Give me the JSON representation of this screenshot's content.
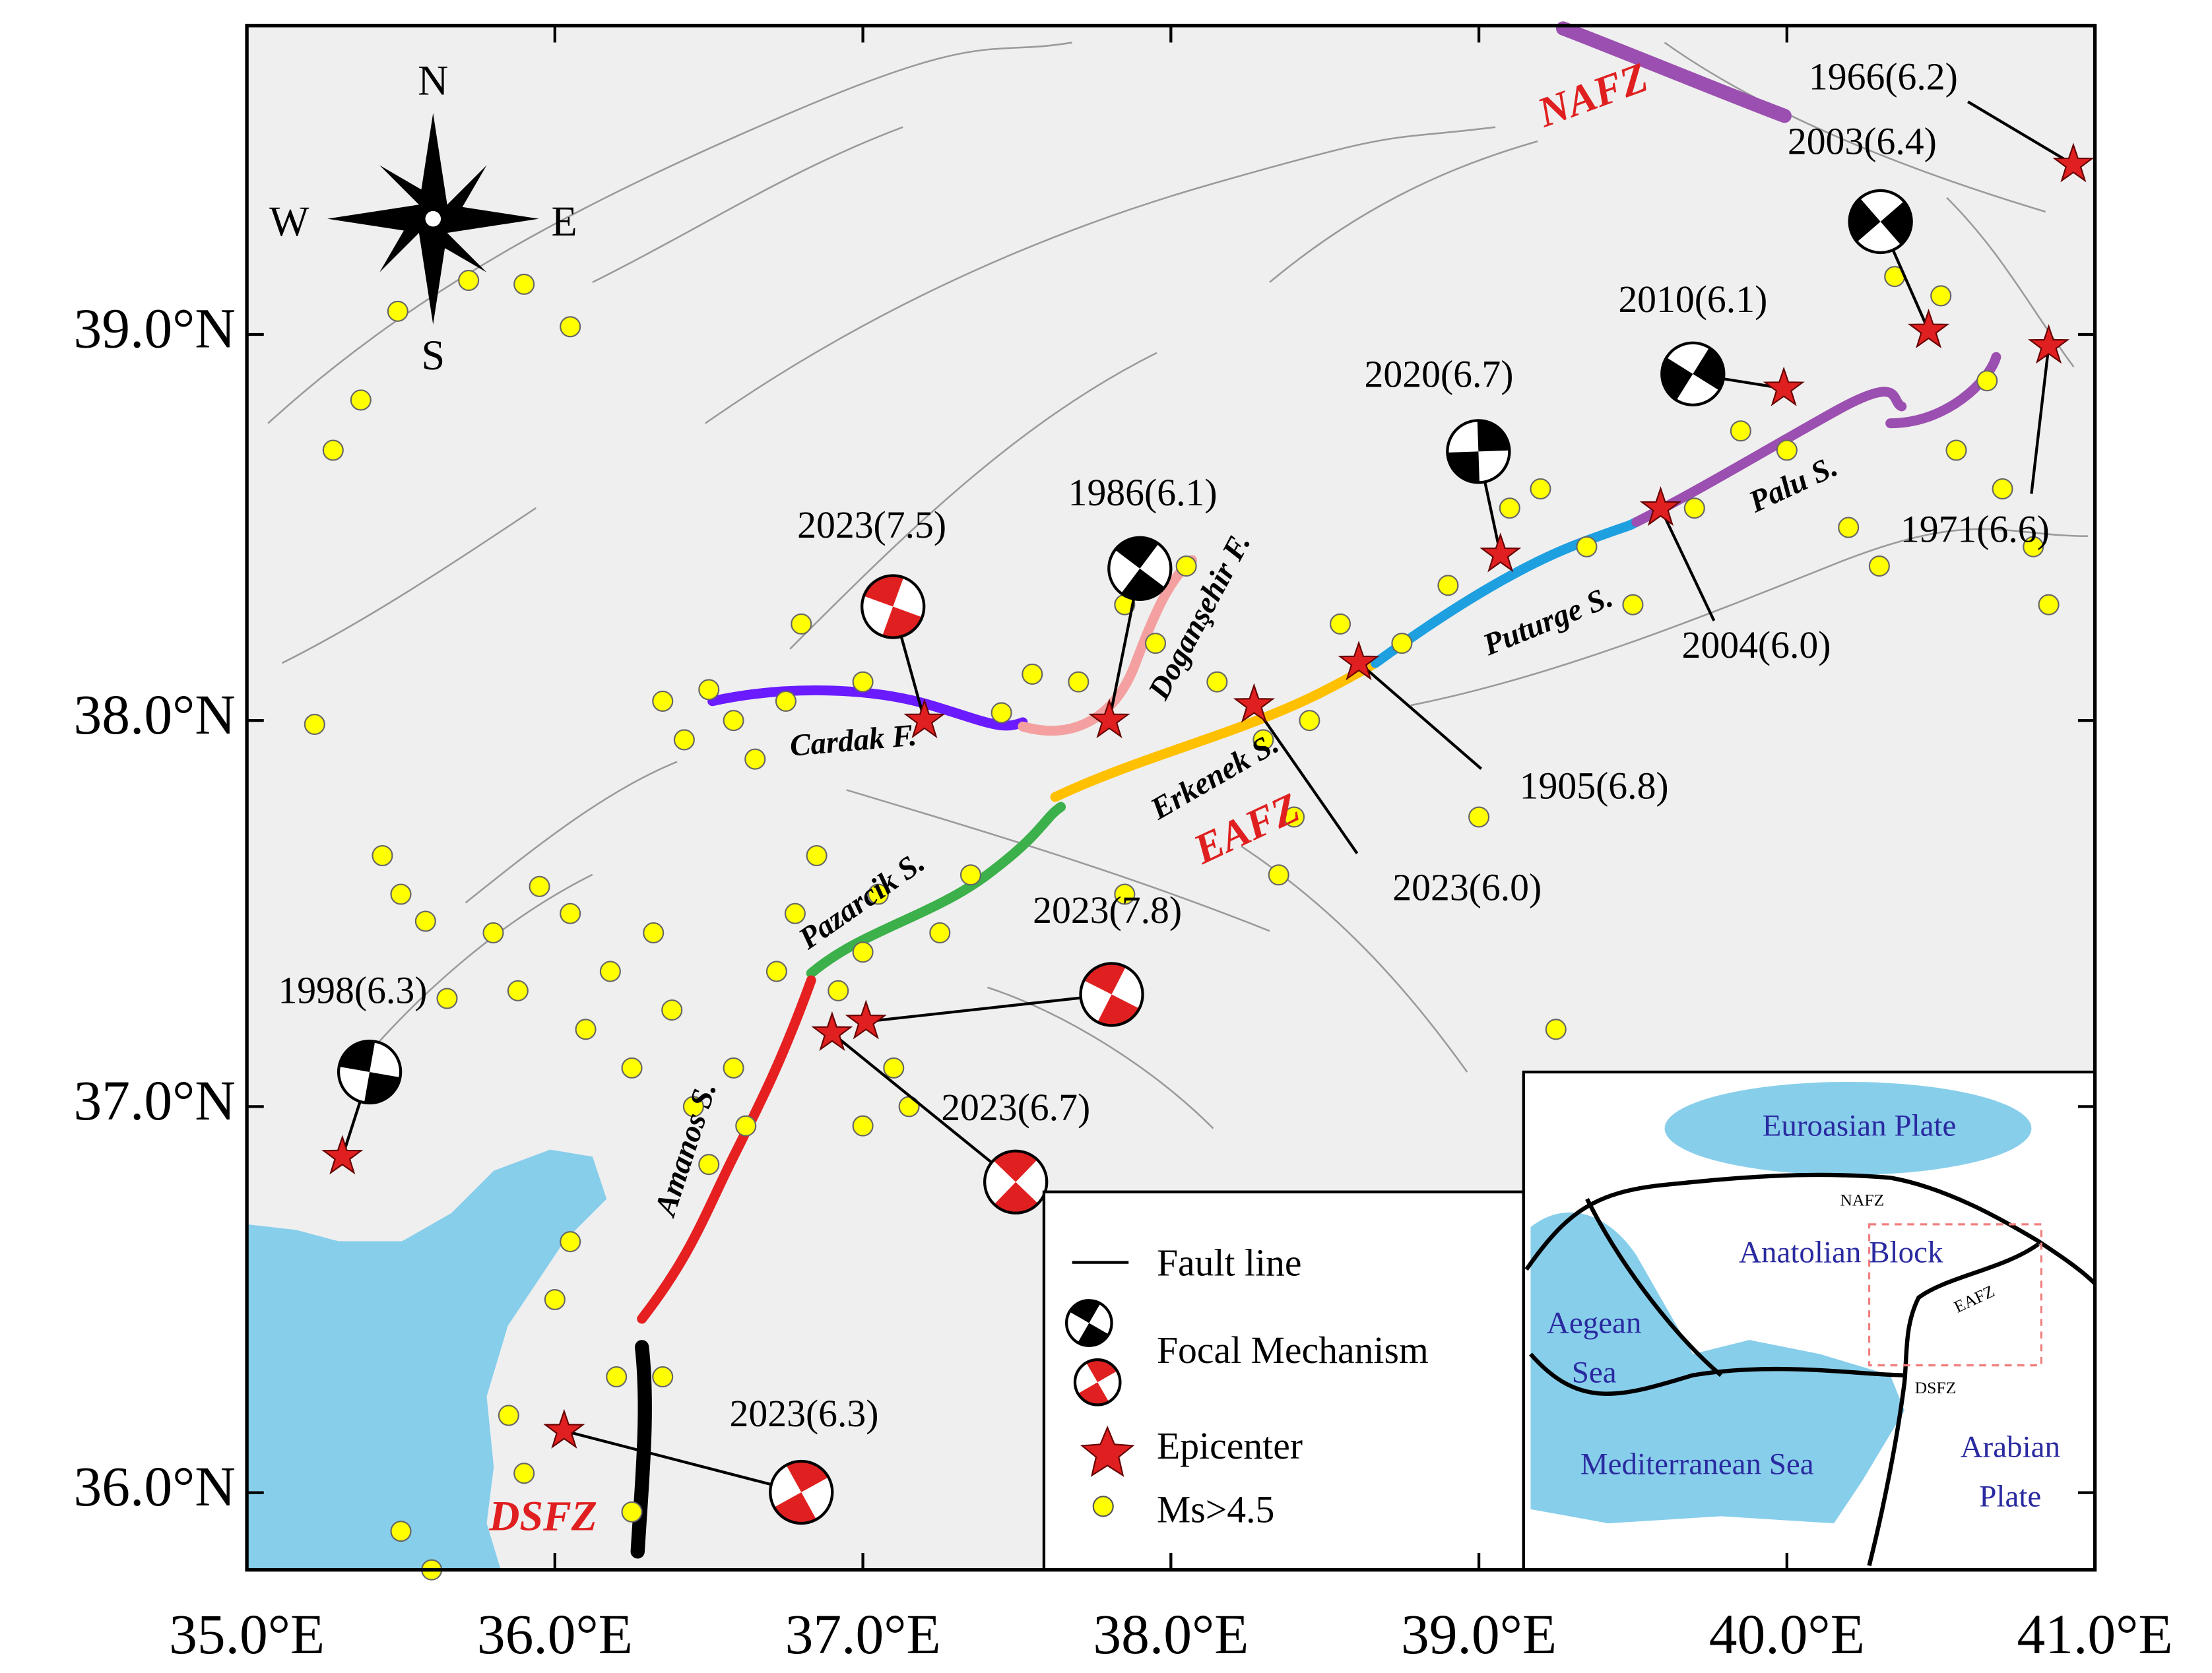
{
  "map": {
    "xlim": [
      35,
      41
    ],
    "ylim": [
      35.8,
      39.8
    ],
    "xticks": [
      {
        "value": 35,
        "label": "35.0°E"
      },
      {
        "value": 36,
        "label": "36.0°E"
      },
      {
        "value": 37,
        "label": "37.0°E"
      },
      {
        "value": 38,
        "label": "38.0°E"
      },
      {
        "value": 39,
        "label": "39.0°E"
      },
      {
        "value": 40,
        "label": "40.0°E"
      },
      {
        "value": 41,
        "label": "41.0°E"
      }
    ],
    "yticks": [
      {
        "value": 36,
        "label": "36.0°N"
      },
      {
        "value": 37,
        "label": "37.0°N"
      },
      {
        "value": 38,
        "label": "38.0°N"
      },
      {
        "value": 39,
        "label": "39.0°N"
      }
    ]
  },
  "compass": {
    "n": "N",
    "e": "E",
    "s": "S",
    "w": "W"
  },
  "events": [
    {
      "label": "2023(7.5)",
      "lon": 37.2,
      "lat": 38.0,
      "ball_color": "#e02020"
    },
    {
      "label": "1986(6.1)",
      "lon": 37.8,
      "lat": 38.0,
      "ball_color": "#000000"
    },
    {
      "label": "2023(6.0)",
      "lon": 38.27,
      "lat": 38.04
    },
    {
      "label": "1905(6.8)",
      "lon": 38.61,
      "lat": 38.15
    },
    {
      "label": "2020(6.7)",
      "lon": 39.07,
      "lat": 38.43,
      "ball_color": "#000000"
    },
    {
      "label": "2004(6.0)",
      "lon": 39.59,
      "lat": 38.55
    },
    {
      "label": "2010(6.1)",
      "lon": 39.99,
      "lat": 38.86,
      "ball_color": "#000000"
    },
    {
      "label": "2003(6.4)",
      "lon": 40.46,
      "lat": 39.01,
      "ball_color": "#000000"
    },
    {
      "label": "1966(6.2)",
      "lon": 40.93,
      "lat": 39.44
    },
    {
      "label": "1971(6.6)",
      "lon": 40.85,
      "lat": 38.97
    },
    {
      "label": "1998(6.3)",
      "lon": 35.31,
      "lat": 36.87,
      "ball_color": "#000000"
    },
    {
      "label": "2023(7.8)",
      "lon": 37.01,
      "lat": 37.22,
      "ball_color": "#e02020"
    },
    {
      "label": "2023(6.7)",
      "lon": 36.9,
      "lat": 37.19,
      "ball_color": "#e02020"
    },
    {
      "label": "2023(6.3)",
      "lon": 36.03,
      "lat": 36.16,
      "ball_color": "#e02020"
    }
  ],
  "earthquakes": {
    "lon": [
      35.28,
      35.37,
      35.49,
      35.72,
      35.9,
      36.05,
      35.22,
      35.44,
      35.5,
      35.58,
      35.65,
      35.8,
      35.88,
      35.95,
      36.05,
      36.1,
      36.18,
      36.25,
      36.32,
      36.38,
      36.45,
      36.5,
      36.58,
      36.62,
      36.72,
      36.78,
      36.85,
      36.92,
      37.0,
      37.05,
      37.1,
      37.25,
      37.35,
      36.35,
      36.42,
      36.5,
      36.58,
      36.65,
      36.75,
      36.8,
      37.0,
      37.45,
      37.55,
      37.7,
      37.85,
      37.95,
      38.05,
      38.15,
      38.3,
      38.45,
      38.55,
      38.75,
      38.9,
      39.0,
      39.1,
      39.2,
      39.35,
      39.5,
      39.7,
      39.85,
      40.0,
      40.2,
      40.3,
      40.55,
      40.7,
      40.8,
      40.85,
      40.35,
      40.5,
      40.65,
      36.0,
      36.05,
      36.2,
      36.35,
      35.85,
      35.9,
      36.25,
      35.5,
      35.6,
      37.0,
      37.15,
      37.85,
      38.35,
      39.25,
      38.4
    ],
    "lat": [
      38.7,
      38.83,
      39.06,
      39.14,
      39.13,
      39.02,
      37.99,
      37.65,
      37.55,
      37.48,
      37.28,
      37.45,
      37.3,
      37.57,
      37.5,
      37.2,
      37.35,
      37.1,
      37.45,
      37.25,
      37.0,
      36.85,
      37.1,
      36.95,
      37.35,
      37.5,
      37.65,
      37.3,
      37.4,
      37.55,
      37.1,
      37.45,
      37.6,
      38.05,
      37.95,
      38.08,
      38.0,
      37.9,
      38.05,
      38.25,
      38.1,
      38.02,
      38.12,
      38.1,
      38.3,
      38.2,
      38.4,
      38.1,
      37.95,
      38.0,
      38.25,
      38.2,
      38.35,
      37.75,
      38.55,
      38.6,
      38.45,
      38.3,
      38.55,
      38.75,
      38.7,
      38.5,
      38.4,
      38.7,
      38.6,
      38.45,
      38.3,
      39.15,
      39.1,
      38.88,
      36.5,
      36.65,
      36.3,
      36.3,
      36.2,
      36.05,
      35.95,
      35.9,
      35.8,
      36.95,
      37.0,
      37.55,
      37.6,
      37.2,
      37.75
    ]
  },
  "segments": {
    "cardak": "Cardak F.",
    "dogansehir": "Doganşehir F.",
    "erkenek": "Erkenek S.",
    "puturge": "Puturge S.",
    "palu": "Palu S.",
    "pazarcik": "Pazarcik S.",
    "amanos": "Amanos S."
  },
  "zones": {
    "nafz": "NAFZ",
    "eafz": "EAFZ",
    "dsfz": "DSFZ"
  },
  "legend": {
    "fault": "Fault line",
    "focal": "Focal Mechanism",
    "epicenter": "Epicenter",
    "ms": "Ms>4.5"
  },
  "inset": {
    "euroasian": "Euroasian Plate",
    "anatolian": "Anatolian Block",
    "aegean": [
      "Aegean",
      "Sea"
    ],
    "mediterranean": "Mediterranean Sea",
    "arabian": [
      "Arabian",
      "Plate"
    ],
    "nafz": "NAFZ",
    "eafz": "EAFZ",
    "dsfz": "DSFZ"
  }
}
